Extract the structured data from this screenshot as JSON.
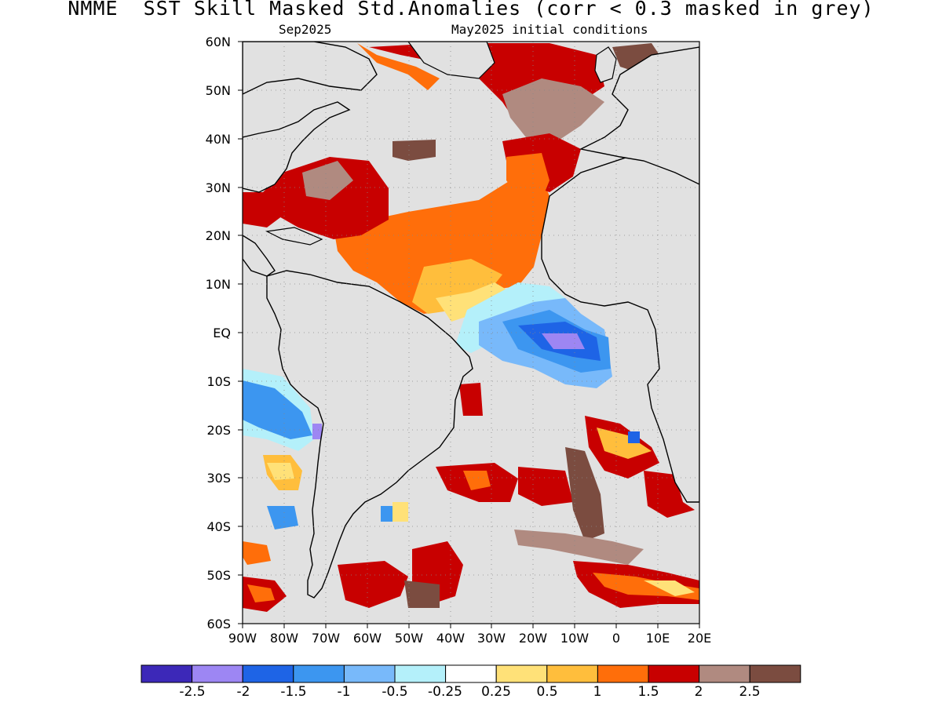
{
  "title": "NMME  SST Skill Masked Std.Anomalies (corr < 0.3 masked in grey)",
  "subtitle_left": "Sep2025",
  "subtitle_right": "May2025 initial conditions",
  "lat_labels": [
    "60N",
    "50N",
    "40N",
    "30N",
    "20N",
    "10N",
    "EQ",
    "10S",
    "20S",
    "30S",
    "40S",
    "50S",
    "60S"
  ],
  "lon_labels": [
    "90W",
    "80W",
    "70W",
    "60W",
    "50W",
    "40W",
    "30W",
    "20W",
    "10W",
    "0",
    "10E",
    "20E"
  ],
  "colorbar": {
    "colors": [
      "#3c28b8",
      "#9d86f3",
      "#1e64e6",
      "#3c96f0",
      "#78b9fa",
      "#b4f0fa",
      "#ffffff",
      "#ffe178",
      "#ffbe3c",
      "#ff6e0a",
      "#c80000",
      "#b08a80",
      "#7b4c40"
    ],
    "labels": [
      "-2.5",
      "-2",
      "-1.5",
      "-1",
      "-0.5",
      "-0.25",
      "0.25",
      "0.5",
      "1",
      "1.5",
      "2",
      "2.5"
    ]
  },
  "colors": {
    "mask_grey": "#e1e1e1",
    "background": "#ffffff"
  }
}
